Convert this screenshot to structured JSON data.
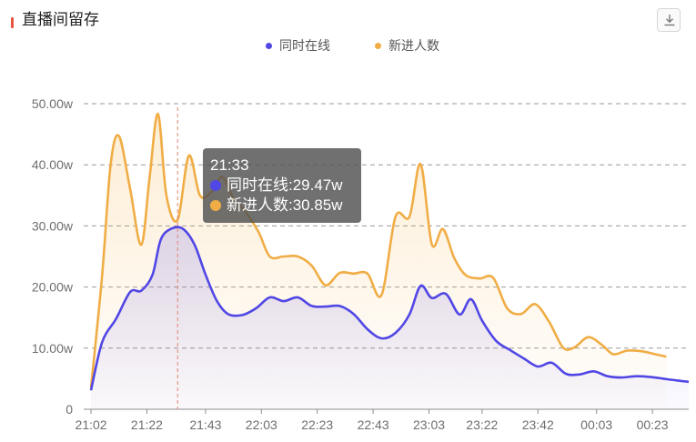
{
  "header": {
    "title": "直播间留存",
    "download_icon": "download-icon"
  },
  "legend": [
    {
      "name": "同时在线",
      "color": "#5047e5"
    },
    {
      "name": "新进人数",
      "color": "#f0ad46"
    }
  ],
  "tooltip": {
    "time": "21:33",
    "rows": [
      {
        "label": "同时在线:29.47w",
        "color": "#5047e5"
      },
      {
        "label": "新进人数:30.85w",
        "color": "#f0ad46"
      }
    ]
  },
  "chart_data": {
    "type": "area",
    "title": "直播间留存",
    "x_ticks": [
      "21:02",
      "21:22",
      "21:43",
      "22:03",
      "22:23",
      "22:43",
      "23:03",
      "23:22",
      "23:42",
      "00:03",
      "00:23"
    ],
    "y_ticks": [
      "0",
      "10.00w",
      "20.00w",
      "30.00w",
      "40.00w",
      "50.00w"
    ],
    "ylim": [
      0,
      50
    ],
    "y_unit": "w",
    "grid": true,
    "legend_position": "top-center",
    "highlight_time": "21:33",
    "series": [
      {
        "name": "同时在线",
        "color": "#5047e5",
        "points": [
          [
            21.033,
            3.1
          ],
          [
            21.1,
            11
          ],
          [
            21.183,
            14.8
          ],
          [
            21.267,
            19.2
          ],
          [
            21.333,
            19.4
          ],
          [
            21.4,
            22
          ],
          [
            21.45,
            27.8
          ],
          [
            21.517,
            29.6
          ],
          [
            21.583,
            29.5
          ],
          [
            21.65,
            27
          ],
          [
            21.717,
            22
          ],
          [
            21.783,
            17.8
          ],
          [
            21.85,
            15.6
          ],
          [
            21.933,
            15.4
          ],
          [
            22.017,
            16.5
          ],
          [
            22.1,
            18.3
          ],
          [
            22.183,
            17.7
          ],
          [
            22.267,
            18.3
          ],
          [
            22.35,
            16.9
          ],
          [
            22.433,
            16.8
          ],
          [
            22.517,
            16.9
          ],
          [
            22.6,
            15.6
          ],
          [
            22.683,
            13.1
          ],
          [
            22.767,
            11.6
          ],
          [
            22.85,
            12.5
          ],
          [
            22.933,
            15.5
          ],
          [
            23.0,
            20.2
          ],
          [
            23.067,
            18.2
          ],
          [
            23.15,
            18.9
          ],
          [
            23.233,
            15.5
          ],
          [
            23.3,
            18
          ],
          [
            23.367,
            14.5
          ],
          [
            23.45,
            11.2
          ],
          [
            23.533,
            9.7
          ],
          [
            23.617,
            8.3
          ],
          [
            23.7,
            7.0
          ],
          [
            23.783,
            7.6
          ],
          [
            23.867,
            5.8
          ],
          [
            23.95,
            5.7
          ],
          [
            24.033,
            6.2
          ],
          [
            24.117,
            5.4
          ],
          [
            24.2,
            5.2
          ],
          [
            24.283,
            5.4
          ],
          [
            24.367,
            5.3
          ],
          [
            24.45,
            5.0
          ],
          [
            24.533,
            4.7
          ],
          [
            24.6,
            4.5
          ]
        ]
      },
      {
        "name": "新进人数",
        "color": "#f0ad46",
        "points": [
          [
            21.033,
            3.5
          ],
          [
            21.1,
            22
          ],
          [
            21.15,
            40
          ],
          [
            21.2,
            44.7
          ],
          [
            21.267,
            36
          ],
          [
            21.333,
            26.9
          ],
          [
            21.383,
            38
          ],
          [
            21.433,
            48.3
          ],
          [
            21.483,
            35
          ],
          [
            21.55,
            31
          ],
          [
            21.617,
            41.5
          ],
          [
            21.683,
            35
          ],
          [
            21.75,
            35.5
          ],
          [
            21.817,
            38
          ],
          [
            21.883,
            34.5
          ],
          [
            21.95,
            32.5
          ],
          [
            22.033,
            29
          ],
          [
            22.1,
            25
          ],
          [
            22.183,
            25
          ],
          [
            22.267,
            25
          ],
          [
            22.35,
            23.5
          ],
          [
            22.433,
            20.3
          ],
          [
            22.517,
            22.3
          ],
          [
            22.6,
            22.2
          ],
          [
            22.683,
            22.2
          ],
          [
            22.767,
            18.7
          ],
          [
            22.85,
            31.5
          ],
          [
            22.933,
            31.5
          ],
          [
            23.0,
            40.1
          ],
          [
            23.067,
            27
          ],
          [
            23.133,
            29.5
          ],
          [
            23.2,
            24.8
          ],
          [
            23.267,
            22
          ],
          [
            23.35,
            21.4
          ],
          [
            23.433,
            21.5
          ],
          [
            23.517,
            16.5
          ],
          [
            23.6,
            15.6
          ],
          [
            23.683,
            17.2
          ],
          [
            23.767,
            14.3
          ],
          [
            23.85,
            10.1
          ],
          [
            23.917,
            10.1
          ],
          [
            24.0,
            11.8
          ],
          [
            24.083,
            10.5
          ],
          [
            24.15,
            9.0
          ],
          [
            24.233,
            9.6
          ],
          [
            24.317,
            9.5
          ],
          [
            24.4,
            9.0
          ],
          [
            24.467,
            8.6
          ]
        ]
      }
    ]
  }
}
